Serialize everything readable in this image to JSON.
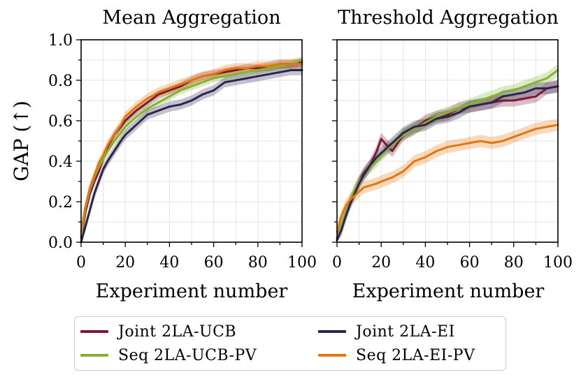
{
  "colors": {
    "joint_ucb": "#7a1a33",
    "seq_ucb": "#84b231",
    "joint_ei": "#2c2550",
    "seq_ei": "#e4760f",
    "grid": "#e3e3e3"
  },
  "legend": [
    {
      "key": "joint_ucb",
      "label": "Joint 2LA-UCB"
    },
    {
      "key": "joint_ei",
      "label": "Joint 2LA-EI"
    },
    {
      "key": "seq_ucb",
      "label": "Seq 2LA-UCB-PV"
    },
    {
      "key": "seq_ei",
      "label": "Seq 2LA-EI-PV"
    }
  ],
  "chart_data": [
    {
      "type": "line",
      "title": "Mean Aggregation",
      "xlabel": "Experiment number",
      "ylabel": "GAP (↑)",
      "xlim": [
        0,
        100
      ],
      "ylim": [
        0,
        1
      ],
      "xticks": [
        "0",
        "20",
        "40",
        "60",
        "80",
        "100"
      ],
      "yticks": [
        "0.0",
        "0.2",
        "0.4",
        "0.6",
        "0.8",
        "1.0"
      ],
      "grid": true,
      "x": [
        0,
        2,
        4,
        6,
        8,
        10,
        12,
        15,
        18,
        20,
        25,
        30,
        35,
        40,
        45,
        50,
        55,
        60,
        65,
        70,
        75,
        80,
        85,
        90,
        95,
        100
      ],
      "series": [
        {
          "name": "Joint 2LA-UCB",
          "key": "joint_ucb",
          "band": 0.02,
          "values": [
            0.02,
            0.15,
            0.24,
            0.3,
            0.35,
            0.41,
            0.47,
            0.53,
            0.57,
            0.6,
            0.65,
            0.69,
            0.73,
            0.75,
            0.77,
            0.8,
            0.82,
            0.83,
            0.84,
            0.85,
            0.86,
            0.86,
            0.87,
            0.88,
            0.88,
            0.89
          ]
        },
        {
          "name": "Seq 2LA-UCB-PV",
          "key": "seq_ucb",
          "band": 0.02,
          "values": [
            0.03,
            0.17,
            0.26,
            0.32,
            0.37,
            0.41,
            0.45,
            0.5,
            0.54,
            0.57,
            0.62,
            0.66,
            0.69,
            0.72,
            0.75,
            0.77,
            0.79,
            0.81,
            0.82,
            0.83,
            0.84,
            0.85,
            0.86,
            0.87,
            0.88,
            0.9
          ]
        },
        {
          "name": "Seq 2LA-EI-PV",
          "key": "seq_ei",
          "band": 0.025,
          "values": [
            0.05,
            0.18,
            0.27,
            0.33,
            0.39,
            0.43,
            0.48,
            0.53,
            0.58,
            0.62,
            0.67,
            0.71,
            0.74,
            0.76,
            0.78,
            0.8,
            0.82,
            0.83,
            0.85,
            0.86,
            0.86,
            0.87,
            0.87,
            0.88,
            0.88,
            0.88
          ]
        },
        {
          "name": "Joint 2LA-EI",
          "key": "joint_ei",
          "band": 0.025,
          "values": [
            0.0,
            0.08,
            0.16,
            0.24,
            0.3,
            0.36,
            0.4,
            0.45,
            0.5,
            0.53,
            0.58,
            0.63,
            0.65,
            0.67,
            0.68,
            0.7,
            0.73,
            0.75,
            0.79,
            0.8,
            0.81,
            0.82,
            0.83,
            0.84,
            0.85,
            0.85
          ]
        }
      ]
    },
    {
      "type": "line",
      "title": "Threshold Aggregation",
      "xlabel": "Experiment number",
      "ylabel": "",
      "xlim": [
        0,
        100
      ],
      "ylim": [
        0,
        1
      ],
      "xticks": [
        "0",
        "20",
        "40",
        "60",
        "80",
        "100"
      ],
      "yticks": [],
      "grid": true,
      "x": [
        0,
        2,
        4,
        6,
        8,
        10,
        12,
        15,
        18,
        20,
        25,
        30,
        35,
        40,
        45,
        50,
        55,
        60,
        65,
        70,
        75,
        80,
        85,
        90,
        95,
        100
      ],
      "series": [
        {
          "name": "Joint 2LA-UCB",
          "key": "joint_ucb",
          "band": 0.03,
          "values": [
            0.02,
            0.08,
            0.14,
            0.2,
            0.25,
            0.3,
            0.34,
            0.38,
            0.45,
            0.51,
            0.45,
            0.53,
            0.56,
            0.6,
            0.62,
            0.63,
            0.66,
            0.67,
            0.68,
            0.69,
            0.7,
            0.7,
            0.71,
            0.72,
            0.76,
            0.77
          ]
        },
        {
          "name": "Seq 2LA-UCB-PV",
          "key": "seq_ucb",
          "band": 0.03,
          "values": [
            0.01,
            0.08,
            0.15,
            0.21,
            0.26,
            0.3,
            0.33,
            0.37,
            0.4,
            0.43,
            0.48,
            0.53,
            0.56,
            0.59,
            0.62,
            0.64,
            0.66,
            0.68,
            0.7,
            0.72,
            0.74,
            0.75,
            0.77,
            0.79,
            0.81,
            0.85
          ]
        },
        {
          "name": "Joint 2LA-EI",
          "key": "joint_ei",
          "band": 0.03,
          "values": [
            0.01,
            0.06,
            0.13,
            0.19,
            0.24,
            0.29,
            0.33,
            0.38,
            0.42,
            0.44,
            0.49,
            0.54,
            0.57,
            0.58,
            0.61,
            0.62,
            0.64,
            0.67,
            0.68,
            0.69,
            0.72,
            0.73,
            0.74,
            0.76,
            0.76,
            0.77
          ]
        },
        {
          "name": "Seq 2LA-EI-PV",
          "key": "seq_ei",
          "band": 0.03,
          "values": [
            0.05,
            0.13,
            0.18,
            0.21,
            0.23,
            0.25,
            0.27,
            0.28,
            0.29,
            0.3,
            0.32,
            0.35,
            0.4,
            0.42,
            0.45,
            0.47,
            0.48,
            0.49,
            0.5,
            0.49,
            0.5,
            0.52,
            0.54,
            0.56,
            0.57,
            0.58
          ]
        }
      ]
    }
  ]
}
